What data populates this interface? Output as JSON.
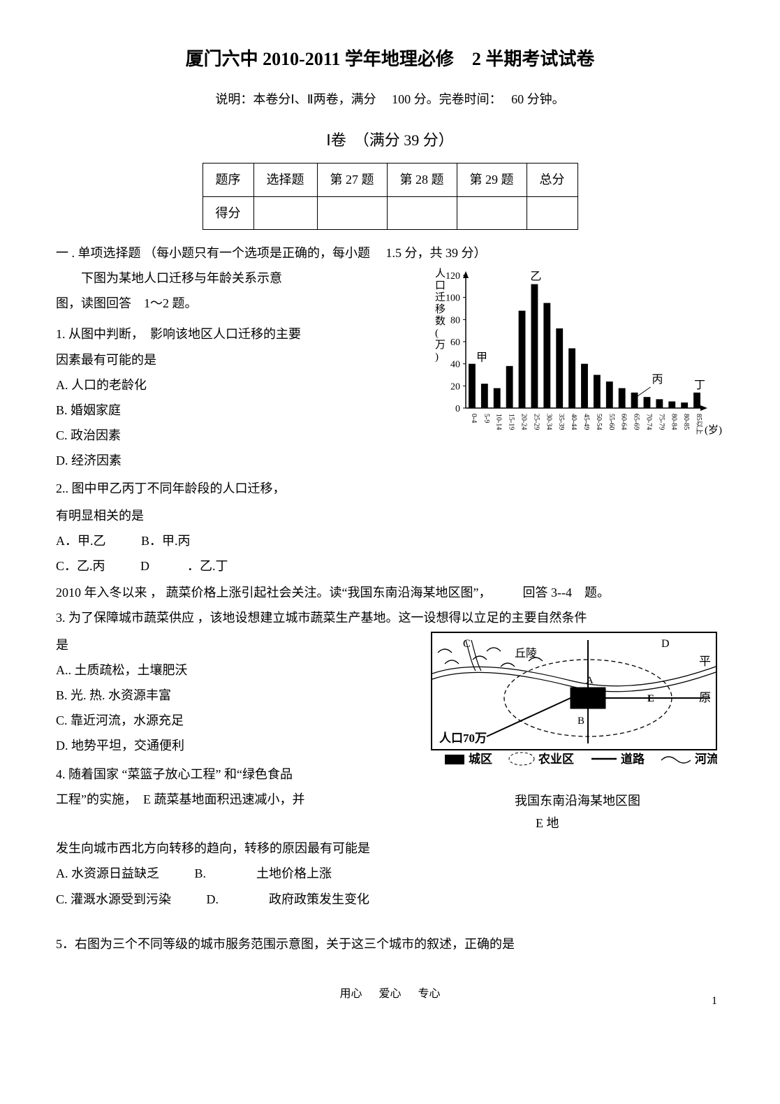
{
  "title": "厦门六中 2010-2011 学年地理必修　2 半期考试试卷",
  "subtitle_prefix": "说明：本卷分Ⅰ、Ⅱ两卷，满分　",
  "subtitle_score": "100",
  "subtitle_mid": " 分。完卷时间：　",
  "subtitle_time": "60",
  "subtitle_suffix": " 分钟。",
  "section1_title": "Ⅰ卷　（满分 39 分）",
  "score_table": {
    "headers": [
      "题序",
      "选择题",
      "第 27 题",
      "第 28 题",
      "第 29 题",
      "总分"
    ],
    "row_label": "得分",
    "cells": [
      "",
      "",
      "",
      "",
      ""
    ]
  },
  "part1_heading": "一 . 单项选择题",
  "part1_note": "（每小题只有一个选项是正确的，每小题　 1.5 分，共 39 分）",
  "intro1a": "下图为某地人口迁移与年龄关系示意",
  "intro1b": "图，读图回答　1～2 题。",
  "q1": {
    "stem1": "1. 从图中判断，　影响该地区人口迁移的主要",
    "stem2": "因素最有可能的是",
    "A": "A. 人口的老龄化",
    "B": "B. 婚姻家庭",
    "C": "C. 政治因素",
    "D": "D. 经济因素"
  },
  "q2": {
    "stem1": "2..  图中甲乙丙丁不同年龄段的人口迁移，",
    "stem2": "有明显相关的是",
    "A": "A．甲.乙",
    "B": "B．甲.丙",
    "C": "C．乙.丙",
    "D": "D　　　．乙.丁"
  },
  "intro2": "2010 年入冬以来 ， 蔬菜价格上涨引起社会关注。读“我国东南沿海某地区图”，　　　回答 3--4　题。",
  "q3": {
    "stem1": "3. 为了保障城市蔬菜供应 ，该地设想建立城市蔬菜生产基地。这一设想得以立足的主要自然条件",
    "stem2": "是",
    "A": "A.. 土质疏松，土壤肥沃",
    "B": "B. 光. 热. 水资源丰富",
    "C": "C. 靠近河流，水源充足",
    "D": "D. 地势平坦，交通便利"
  },
  "q4": {
    "stem1": "4. 随着国家 “菜篮子放心工程” 和“绿色食品",
    "stem2": "工程”的实施，　E 蔬菜基地面积迅速减小，并",
    "stem3": "发生向城市西北方向转移的趋向，转移的原因最有可能是",
    "A": "A. 水资源日益缺乏",
    "B": "B.　　　　土地价格上涨",
    "C": "C. 灌溉水源受到污染",
    "D": "D.　　　　政府政策发生变化"
  },
  "map_caption1": "我国东南沿海某地区图",
  "map_caption2": "E 地",
  "q5": "5．右图为三个不同等级的城市服务范围示意图，关于这三个城市的叙述，正确的是",
  "footer_words": [
    "用心",
    "爱心",
    "专心"
  ],
  "page_number": "1",
  "chart": {
    "type": "bar",
    "y_label": "人口迁移数(万)",
    "x_label_suffix": "(岁)",
    "x_categories": [
      "0-4",
      "5-9",
      "10-14",
      "15-19",
      "20-24",
      "25-29",
      "30-34",
      "35-39",
      "40-44",
      "45-49",
      "50-54",
      "55-60",
      "60-64",
      "65-69",
      "70-74",
      "75-79",
      "80-84",
      "80-85",
      "85以上"
    ],
    "values": [
      40,
      22,
      18,
      38,
      88,
      112,
      95,
      72,
      54,
      40,
      30,
      24,
      18,
      14,
      10,
      8,
      6,
      5,
      14
    ],
    "ylim": [
      0,
      120
    ],
    "yticks": [
      0,
      20,
      40,
      60,
      80,
      100,
      120
    ],
    "bar_color": "#000000",
    "bar_width_ratio": 0.55,
    "background": "#ffffff",
    "annotations": {
      "jia": "甲",
      "yi": "乙",
      "bing": "丙",
      "ding": "丁"
    }
  },
  "map": {
    "type": "schematic-map",
    "background": "#ffffff",
    "stroke": "#000000",
    "labels": {
      "C": "C",
      "D": "D",
      "A": "A",
      "B": "B",
      "E": "E",
      "hills": "丘陵",
      "plain_a": "平",
      "plain_b": "原",
      "pop": "人口70万"
    },
    "legend": {
      "urban": "城区",
      "agri": "农业区",
      "road": "道路",
      "river": "河流"
    }
  }
}
